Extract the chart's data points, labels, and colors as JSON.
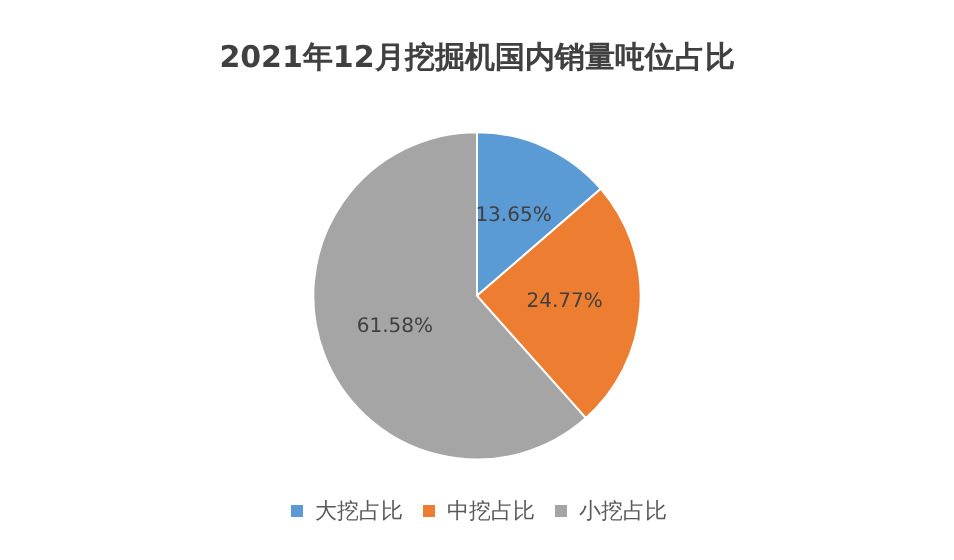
{
  "chart_data": {
    "type": "pie",
    "title": "2021年12月挖掘机国内销量吨位占比",
    "categories": [
      "大挖占比",
      "中挖占比",
      "小挖占比"
    ],
    "values": [
      13.65,
      24.77,
      61.58
    ],
    "value_labels": [
      "13.65%",
      "24.77%",
      "61.58%"
    ],
    "colors": [
      "#5b9bd5",
      "#ed7d31",
      "#a5a5a5"
    ],
    "legend": "bottom"
  }
}
